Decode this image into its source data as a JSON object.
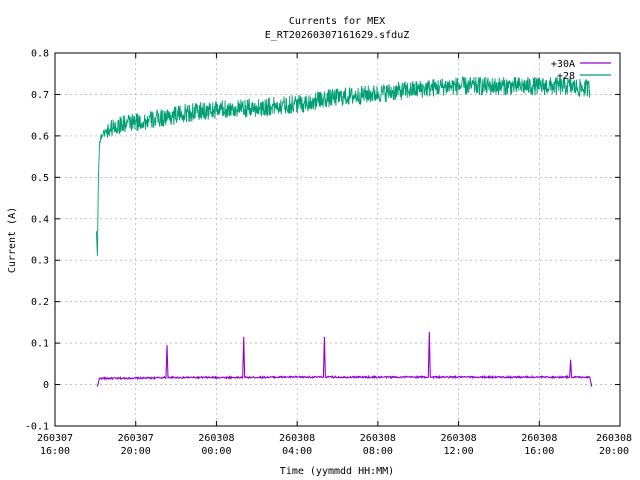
{
  "chart_data": {
    "type": "line",
    "title": "Currents for MEX",
    "subtitle": "E_RT20260307161629.sfduZ",
    "xlabel": "Time (yymmdd HH:MM)",
    "ylabel": "Current (A)",
    "xlim": [
      0,
      28
    ],
    "ylim": [
      -0.1,
      0.8
    ],
    "grid": true,
    "legend_position": "top-right",
    "x_ticks": [
      {
        "x": 0,
        "date": "260307",
        "time": "16:00"
      },
      {
        "x": 4,
        "date": "260307",
        "time": "20:00"
      },
      {
        "x": 8,
        "date": "260308",
        "time": "00:00"
      },
      {
        "x": 12,
        "date": "260308",
        "time": "04:00"
      },
      {
        "x": 16,
        "date": "260308",
        "time": "08:00"
      },
      {
        "x": 20,
        "date": "260308",
        "time": "12:00"
      },
      {
        "x": 24,
        "date": "260308",
        "time": "16:00"
      },
      {
        "x": 28,
        "date": "260308",
        "time": "20:00"
      }
    ],
    "y_ticks": [
      "-0.1",
      "0",
      "0.1",
      "0.2",
      "0.3",
      "0.4",
      "0.5",
      "0.6",
      "0.7",
      "0.8"
    ],
    "series": [
      {
        "name": "+30A",
        "color": "#9400d3",
        "x": [
          2.1,
          2.2,
          3.0,
          5.0,
          5.5,
          5.55,
          5.6,
          7.0,
          9.3,
          9.35,
          9.4,
          11.0,
          13.3,
          13.35,
          13.4,
          16.0,
          18.5,
          18.55,
          18.6,
          20.0,
          24.0,
          25.5,
          25.55,
          25.6,
          26.5,
          26.6
        ],
        "values": [
          -0.005,
          0.015,
          0.015,
          0.016,
          0.017,
          0.095,
          0.017,
          0.017,
          0.017,
          0.115,
          0.017,
          0.018,
          0.018,
          0.115,
          0.018,
          0.018,
          0.018,
          0.127,
          0.018,
          0.018,
          0.018,
          0.018,
          0.06,
          0.018,
          0.018,
          -0.005
        ]
      },
      {
        "name": "+28",
        "color": "#009e73",
        "x": [
          2.05,
          2.1,
          2.15,
          2.2,
          2.3,
          2.5,
          2.8,
          3.5,
          4.5,
          5.5,
          6.5,
          7.5,
          8.5,
          9.5,
          10.5,
          11.5,
          12.5,
          13.5,
          14.5,
          15.5,
          16.5,
          17.5,
          18.5,
          19.5,
          20.5,
          21.5,
          22.5,
          23.5,
          24.5,
          25.5,
          26.0,
          26.5
        ],
        "values": [
          0.37,
          0.31,
          0.5,
          0.58,
          0.6,
          0.61,
          0.62,
          0.63,
          0.635,
          0.645,
          0.655,
          0.66,
          0.665,
          0.665,
          0.67,
          0.675,
          0.68,
          0.69,
          0.695,
          0.7,
          0.705,
          0.71,
          0.715,
          0.72,
          0.72,
          0.72,
          0.72,
          0.72,
          0.72,
          0.72,
          0.715,
          0.715
        ]
      }
    ]
  }
}
